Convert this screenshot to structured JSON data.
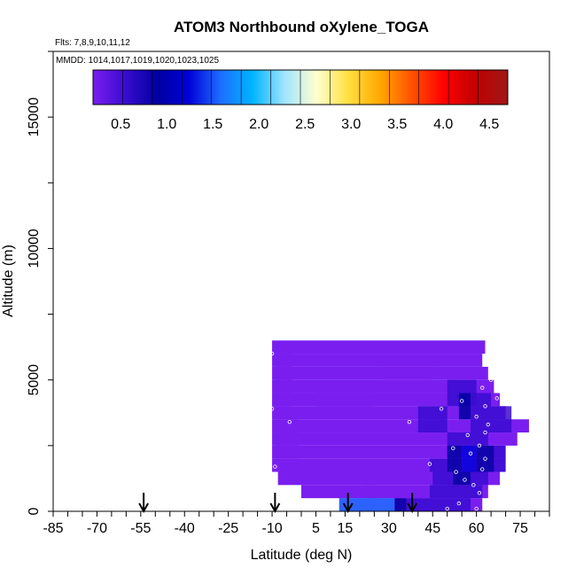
{
  "chart_data": {
    "type": "heatmap",
    "title": "ATOM3 Northbound oXylene_TOGA",
    "flights_note": "Flts: 7,8,9,10,11,12",
    "dates_note": "MMDD: 1014,1017,1019,1020,1023,1025",
    "xlabel": "Latitude (deg N)",
    "ylabel": "Altitude (m)",
    "xlim": [
      -85,
      85
    ],
    "ylim": [
      0,
      17500
    ],
    "x_ticks": [
      -85,
      -70,
      -55,
      -40,
      -25,
      -10,
      5,
      15,
      30,
      45,
      60,
      75
    ],
    "y_ticks": [
      0,
      5000,
      10000,
      15000
    ],
    "colorbar": {
      "range": [
        0.2,
        4.7
      ],
      "ticks": [
        0.5,
        1.0,
        1.5,
        2.0,
        2.5,
        3.0,
        3.5,
        4.0,
        4.5
      ],
      "tick_labels": [
        "0.5",
        "1.0",
        "1.5",
        "2.0",
        "2.5",
        "3.0",
        "3.5",
        "4.0",
        "4.5"
      ],
      "colors": [
        "#7a1ef0",
        "#3a0cd0",
        "#0000a0",
        "#0000d8",
        "#1e6eff",
        "#00b4ff",
        "#a0e4ff",
        "#ffffd0",
        "#ffe040",
        "#ffa800",
        "#ff5000",
        "#ff0000",
        "#c00000",
        "#a01818"
      ]
    },
    "profile_arrows_latitude": [
      -54,
      -9,
      16,
      38
    ],
    "grid_rows": [
      {
        "alt": [
          6000,
          6500
        ],
        "lat": [
          -10,
          63
        ],
        "value": 0.3
      },
      {
        "alt": [
          5500,
          6000
        ],
        "lat": [
          -10,
          62
        ],
        "value": 0.3
      },
      {
        "alt": [
          5000,
          5500
        ],
        "lat": [
          -10,
          64
        ],
        "value": 0.35
      },
      {
        "alt": [
          4500,
          5000
        ],
        "lat": [
          -10,
          66
        ],
        "value": 0.35
      },
      {
        "alt": [
          4000,
          4500
        ],
        "lat": [
          -10,
          68
        ],
        "value": 0.35
      },
      {
        "alt": [
          3500,
          4000
        ],
        "lat": [
          -10,
          70
        ],
        "value": 0.35
      },
      {
        "alt": [
          3000,
          3500
        ],
        "lat": [
          -10,
          78
        ],
        "value": 0.3
      },
      {
        "alt": [
          2500,
          3000
        ],
        "lat": [
          -10,
          74
        ],
        "value": 0.3
      },
      {
        "alt": [
          2000,
          2500
        ],
        "lat": [
          -10,
          70
        ],
        "value": 0.3
      },
      {
        "alt": [
          1500,
          2000
        ],
        "lat": [
          -10,
          70
        ],
        "value": 0.3
      },
      {
        "alt": [
          1000,
          1500
        ],
        "lat": [
          -8,
          68
        ],
        "value": 0.3
      },
      {
        "alt": [
          500,
          1000
        ],
        "lat": [
          0,
          64
        ],
        "value": 0.3
      },
      {
        "alt": [
          0,
          500
        ],
        "lat": [
          13,
          62
        ],
        "value": 0.3
      }
    ],
    "patches": [
      {
        "lat": [
          -9,
          -3
        ],
        "alt": [
          4000,
          6000
        ],
        "value": 0.45
      },
      {
        "lat": [
          -9,
          -1
        ],
        "alt": [
          2000,
          3500
        ],
        "value": 0.45
      },
      {
        "lat": [
          5,
          25
        ],
        "alt": [
          4000,
          4500
        ],
        "value": 0.4
      },
      {
        "lat": [
          28,
          45
        ],
        "alt": [
          5000,
          5500
        ],
        "value": 0.4
      },
      {
        "lat": [
          40,
          50
        ],
        "alt": [
          3000,
          4000
        ],
        "value": 0.7
      },
      {
        "lat": [
          50,
          60
        ],
        "alt": [
          4000,
          5000
        ],
        "value": 0.7
      },
      {
        "lat": [
          54,
          58
        ],
        "alt": [
          3500,
          4500
        ],
        "value": 0.9
      },
      {
        "lat": [
          58,
          65
        ],
        "alt": [
          3000,
          4500
        ],
        "value": 0.7
      },
      {
        "lat": [
          65,
          72
        ],
        "alt": [
          3000,
          4000
        ],
        "value": 0.7
      },
      {
        "lat": [
          50,
          64
        ],
        "alt": [
          2500,
          3000
        ],
        "value": 0.8
      },
      {
        "lat": [
          44,
          50
        ],
        "alt": [
          1500,
          2000
        ],
        "value": 0.7
      },
      {
        "lat": [
          50,
          55
        ],
        "alt": [
          1500,
          2500
        ],
        "value": 0.85
      },
      {
        "lat": [
          55,
          60
        ],
        "alt": [
          1500,
          2500
        ],
        "value": 1.3
      },
      {
        "lat": [
          60,
          66
        ],
        "alt": [
          1500,
          2500
        ],
        "value": 0.9
      },
      {
        "lat": [
          66,
          70
        ],
        "alt": [
          1500,
          2500
        ],
        "value": 0.7
      },
      {
        "lat": [
          45,
          52
        ],
        "alt": [
          1000,
          1500
        ],
        "value": 0.7
      },
      {
        "lat": [
          52,
          58
        ],
        "alt": [
          1000,
          1500
        ],
        "value": 0.9
      },
      {
        "lat": [
          58,
          64
        ],
        "alt": [
          1000,
          1500
        ],
        "value": 0.7
      },
      {
        "lat": [
          44,
          62
        ],
        "alt": [
          500,
          1000
        ],
        "value": 0.75
      },
      {
        "lat": [
          22,
          26
        ],
        "alt": [
          500,
          1000
        ],
        "value": 0.5
      },
      {
        "lat": [
          13,
          17
        ],
        "alt": [
          0,
          500
        ],
        "value": 1.5
      },
      {
        "lat": [
          17,
          24
        ],
        "alt": [
          0,
          500
        ],
        "value": 1.8
      },
      {
        "lat": [
          24,
          32
        ],
        "alt": [
          0,
          500
        ],
        "value": 1.5
      },
      {
        "lat": [
          32,
          36
        ],
        "alt": [
          0,
          500
        ],
        "value": 0.9
      },
      {
        "lat": [
          36,
          44
        ],
        "alt": [
          0,
          500
        ],
        "value": 0.65
      },
      {
        "lat": [
          44,
          58
        ],
        "alt": [
          0,
          500
        ],
        "value": 0.75
      }
    ],
    "sample_points": [
      {
        "lat": -10,
        "alt": 6000
      },
      {
        "lat": -10,
        "alt": 3900
      },
      {
        "lat": -9,
        "alt": 1700
      },
      {
        "lat": -4,
        "alt": 3400
      },
      {
        "lat": 37,
        "alt": 3400
      },
      {
        "lat": 44,
        "alt": 1800
      },
      {
        "lat": 48,
        "alt": 3900
      },
      {
        "lat": 52,
        "alt": 2400
      },
      {
        "lat": 55,
        "alt": 4200
      },
      {
        "lat": 57,
        "alt": 2900
      },
      {
        "lat": 58,
        "alt": 2200
      },
      {
        "lat": 59,
        "alt": 1000
      },
      {
        "lat": 60,
        "alt": 3600
      },
      {
        "lat": 61,
        "alt": 2500
      },
      {
        "lat": 61,
        "alt": 700
      },
      {
        "lat": 62,
        "alt": 4700
      },
      {
        "lat": 62,
        "alt": 1600
      },
      {
        "lat": 63,
        "alt": 4000
      },
      {
        "lat": 63,
        "alt": 3000
      },
      {
        "lat": 63,
        "alt": 2000
      },
      {
        "lat": 64,
        "alt": 3300
      },
      {
        "lat": 64,
        "alt": 400
      },
      {
        "lat": 64,
        "alt": 200
      },
      {
        "lat": 65,
        "alt": 800
      },
      {
        "lat": 65,
        "alt": 5000
      },
      {
        "lat": 64,
        "alt": 6100
      },
      {
        "lat": 67,
        "alt": 4300
      },
      {
        "lat": 60,
        "alt": 100
      },
      {
        "lat": 54,
        "alt": 300
      },
      {
        "lat": 50,
        "alt": 100
      },
      {
        "lat": 56,
        "alt": 1200
      },
      {
        "lat": 53,
        "alt": 1500
      }
    ]
  }
}
